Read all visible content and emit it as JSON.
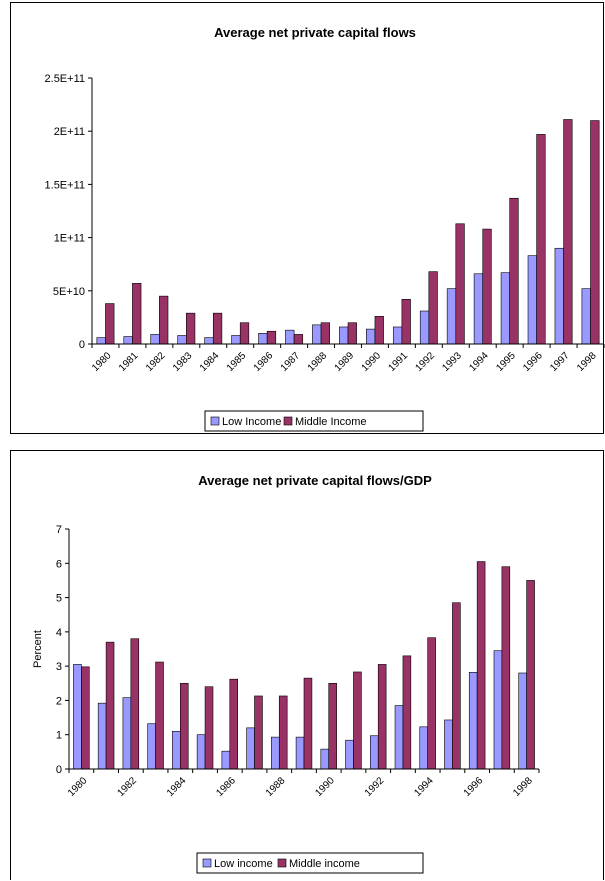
{
  "colors": {
    "series1": "#9999ff",
    "series2": "#993366"
  },
  "chart_data": [
    {
      "type": "bar",
      "title": "Average net private capital flows",
      "xlabel": "",
      "ylabel": "",
      "ylim": [
        0,
        250000000000
      ],
      "yticks": [
        0,
        50000000000,
        100000000000,
        150000000000,
        200000000000,
        250000000000
      ],
      "ytick_labels": [
        "0",
        "5E+10",
        "1E+11",
        "1.5E+11",
        "2E+11",
        "2.5E+11"
      ],
      "categories": [
        "1980",
        "1981",
        "1982",
        "1983",
        "1984",
        "1985",
        "1986",
        "1987",
        "1988",
        "1989",
        "1990",
        "1991",
        "1992",
        "1993",
        "1994",
        "1995",
        "1996",
        "1997",
        "1998"
      ],
      "xtick_labels": [
        "1980",
        "1981",
        "1982",
        "1983",
        "1984",
        "1985",
        "1986",
        "1987",
        "1988",
        "1989",
        "1990",
        "1991",
        "1992",
        "1993",
        "1994",
        "1995",
        "1996",
        "1997",
        "1998"
      ],
      "series": [
        {
          "name": "Low Income",
          "values": [
            6000000000,
            7000000000,
            9000000000,
            8000000000,
            6000000000,
            8000000000,
            10000000000,
            13000000000,
            18000000000,
            16000000000,
            14000000000,
            16000000000,
            31000000000,
            52000000000,
            66000000000,
            67000000000,
            83000000000,
            90000000000,
            52000000000
          ]
        },
        {
          "name": "Middle Income",
          "values": [
            38000000000,
            57000000000,
            45000000000,
            29000000000,
            29000000000,
            20000000000,
            12000000000,
            9000000000,
            20000000000,
            20000000000,
            26000000000,
            42000000000,
            68000000000,
            113000000000,
            108000000000,
            137000000000,
            197000000000,
            211000000000,
            210000000000
          ]
        }
      ],
      "grid": false,
      "legend_position": "bottom"
    },
    {
      "type": "bar",
      "title": "Average net private capital flows/GDP",
      "xlabel": "",
      "ylabel": "Percent",
      "ylim": [
        0,
        7
      ],
      "yticks": [
        0,
        1,
        2,
        3,
        4,
        5,
        6,
        7
      ],
      "ytick_labels": [
        "0",
        "1",
        "2",
        "3",
        "4",
        "5",
        "6",
        "7"
      ],
      "categories": [
        "1980",
        "1981",
        "1982",
        "1983",
        "1984",
        "1985",
        "1986",
        "1987",
        "1988",
        "1989",
        "1990",
        "1991",
        "1992",
        "1993",
        "1994",
        "1995",
        "1996",
        "1997",
        "1998"
      ],
      "xtick_labels": [
        "1980",
        "",
        "1982",
        "",
        "1984",
        "",
        "1986",
        "",
        "1988",
        "",
        "1990",
        "",
        "1992",
        "",
        "1994",
        "",
        "1996",
        "",
        "1998"
      ],
      "series": [
        {
          "name": "Low income",
          "values": [
            3.05,
            1.92,
            2.08,
            1.32,
            1.1,
            1.0,
            0.52,
            1.2,
            0.93,
            0.93,
            0.58,
            0.84,
            0.97,
            1.85,
            1.23,
            1.43,
            2.82,
            3.45,
            2.8
          ]
        },
        {
          "name": "Middle income",
          "values": [
            2.98,
            3.7,
            3.8,
            3.12,
            2.5,
            2.4,
            2.62,
            2.13,
            2.13,
            2.65,
            2.5,
            2.83,
            3.05,
            3.3,
            3.83,
            4.85,
            6.05,
            5.9,
            5.5
          ]
        }
      ],
      "grid": false,
      "legend_position": "bottom"
    }
  ]
}
